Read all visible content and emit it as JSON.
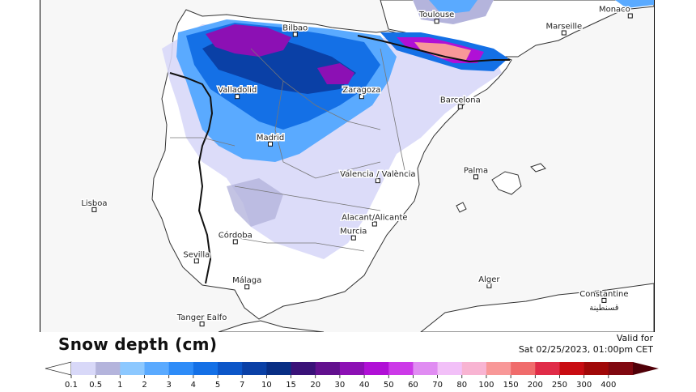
{
  "title": "Snow depth (cm)",
  "valid": {
    "line1": "Valid for",
    "line2": "Sat 02/25/2023, 01:00pm CET"
  },
  "cities": [
    {
      "name": "Bilbao",
      "lon": -2.93,
      "lat": 43.26
    },
    {
      "name": "Toulouse",
      "lon": 1.44,
      "lat": 43.6
    },
    {
      "name": "Marseille",
      "lon": 5.37,
      "lat": 43.3
    },
    {
      "name": "Monaco",
      "lon": 7.42,
      "lat": 43.74
    },
    {
      "name": "Valladolid",
      "lon": -4.72,
      "lat": 41.65
    },
    {
      "name": "Zaragoza",
      "lon": -0.88,
      "lat": 41.65
    },
    {
      "name": "Barcelona",
      "lon": 2.17,
      "lat": 41.39
    },
    {
      "name": "Madrid",
      "lon": -3.7,
      "lat": 40.42
    },
    {
      "name": "Valencia / València",
      "lon": -0.38,
      "lat": 39.47
    },
    {
      "name": "Palma",
      "lon": 2.65,
      "lat": 39.57
    },
    {
      "name": "Lisboa",
      "lon": -9.14,
      "lat": 38.72
    },
    {
      "name": "Alacant/Alicante",
      "lon": -0.48,
      "lat": 38.35
    },
    {
      "name": "Murcia",
      "lon": -1.13,
      "lat": 37.99
    },
    {
      "name": "Córdoba",
      "lon": -4.78,
      "lat": 37.89
    },
    {
      "name": "Sevilla",
      "lon": -5.98,
      "lat": 37.39
    },
    {
      "name": "Málaga",
      "lon": -4.42,
      "lat": 36.72
    },
    {
      "name": "Tanger Ealfo",
      "lon": -5.81,
      "lat": 35.76
    },
    {
      "name": "Alger",
      "lon": 3.06,
      "lat": 36.75
    },
    {
      "name": "Constantine",
      "sub": "قسنطينة",
      "lon": 6.61,
      "lat": 36.37
    }
  ],
  "legend": {
    "values": [
      "0.1",
      "0.5",
      "1",
      "2",
      "3",
      "4",
      "5",
      "7",
      "10",
      "15",
      "20",
      "30",
      "40",
      "50",
      "60",
      "70",
      "80",
      "100",
      "150",
      "200",
      "250",
      "300",
      "400"
    ],
    "colors": [
      "#d8d8f8",
      "#b4b4dc",
      "#8cc8ff",
      "#5aaaff",
      "#2e8cf8",
      "#1470e6",
      "#0c56c8",
      "#0a40a6",
      "#082e84",
      "#3a1278",
      "#62108e",
      "#8c10b4",
      "#b010d6",
      "#cc3ae8",
      "#e08cf2",
      "#f2c0f8",
      "#f8b4d2",
      "#f89898",
      "#f06c6c",
      "#e02c48",
      "#c80c12",
      "#a00808",
      "#800810",
      "#500008"
    ]
  },
  "colors": {
    "land": "#ffffff",
    "sea": "#f7f7f7",
    "border": "#111111"
  }
}
